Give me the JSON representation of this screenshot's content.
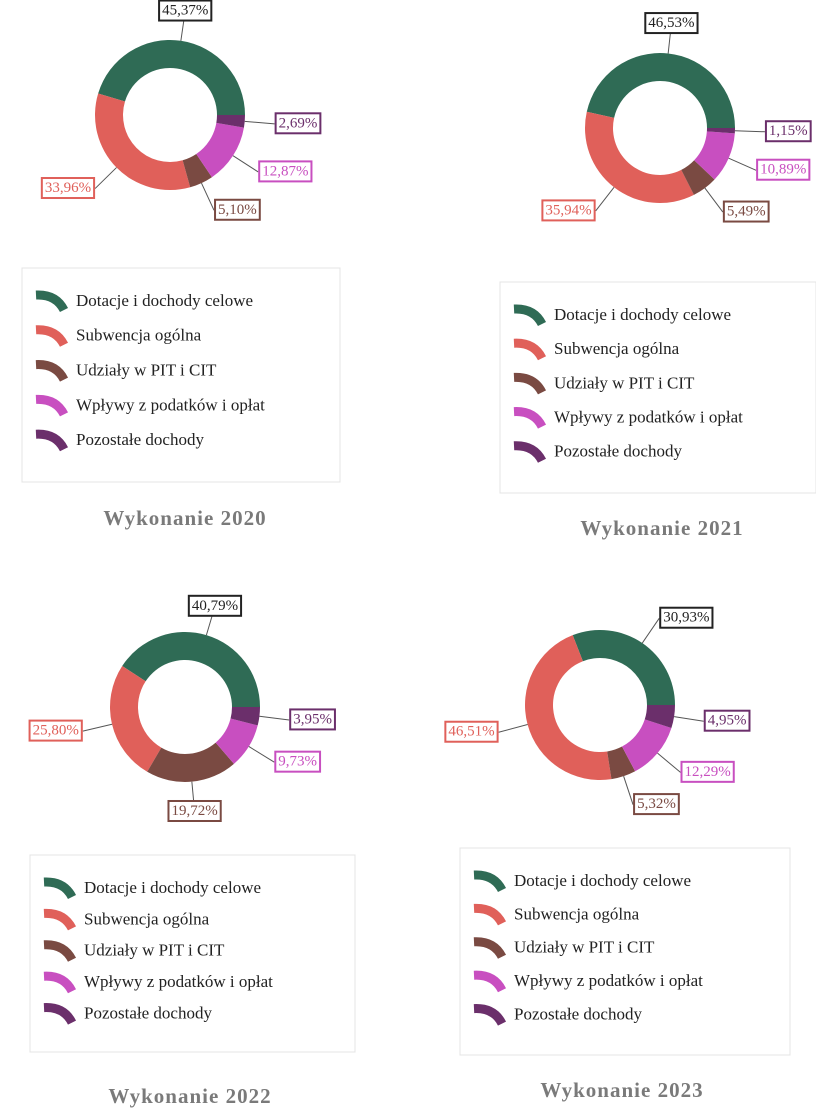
{
  "chart_data": [
    {
      "type": "pie",
      "title": "Wykonanie 2020",
      "categories": [
        "Dotacje i dochody celowe",
        "Subwencja ogólna",
        "Udziały w PIT i CIT",
        "Wpływy z podatków i opłat",
        "Pozostałe dochody"
      ],
      "values": [
        45.37,
        33.96,
        5.1,
        12.87,
        2.69
      ],
      "value_labels": [
        "45,37%",
        "33,96%",
        "5,10%",
        "12,87%",
        "2,69%"
      ],
      "colors": [
        "#2f6b55",
        "#e0605a",
        "#7a4a42",
        "#c84fc0",
        "#6b2f6b"
      ]
    },
    {
      "type": "pie",
      "title": "Wykonanie 2021",
      "categories": [
        "Dotacje i dochody celowe",
        "Subwencja ogólna",
        "Udziały w PIT i CIT",
        "Wpływy z podatków i opłat",
        "Pozostałe dochody"
      ],
      "values": [
        46.53,
        35.94,
        5.49,
        10.89,
        1.15
      ],
      "value_labels": [
        "46,53%",
        "35,94%",
        "5,49%",
        "10,89%",
        "1,15%"
      ],
      "colors": [
        "#2f6b55",
        "#e0605a",
        "#7a4a42",
        "#c84fc0",
        "#6b2f6b"
      ]
    },
    {
      "type": "pie",
      "title": "Wykonanie 2022",
      "categories": [
        "Dotacje i dochody celowe",
        "Subwencja ogólna",
        "Udziały w PIT i CIT",
        "Wpływy z podatków i opłat",
        "Pozostałe dochody"
      ],
      "values": [
        40.79,
        25.8,
        19.72,
        9.73,
        3.95
      ],
      "value_labels": [
        "40,79%",
        "25,80%",
        "19,72%",
        "9,73%",
        "3,95%"
      ],
      "colors": [
        "#2f6b55",
        "#e0605a",
        "#7a4a42",
        "#c84fc0",
        "#6b2f6b"
      ]
    },
    {
      "type": "pie",
      "title": "Wykonanie 2023",
      "categories": [
        "Dotacje i dochody celowe",
        "Subwencja ogólna",
        "Udziały w PIT i CIT",
        "Wpływy z podatków i opłat",
        "Pozostałe dochody"
      ],
      "values": [
        30.93,
        46.51,
        5.32,
        12.29,
        4.95
      ],
      "value_labels": [
        "30,93%",
        "46,51%",
        "5,32%",
        "12,29%",
        "4,95%"
      ],
      "colors": [
        "#2f6b55",
        "#e0605a",
        "#7a4a42",
        "#c84fc0",
        "#6b2f6b"
      ]
    }
  ]
}
